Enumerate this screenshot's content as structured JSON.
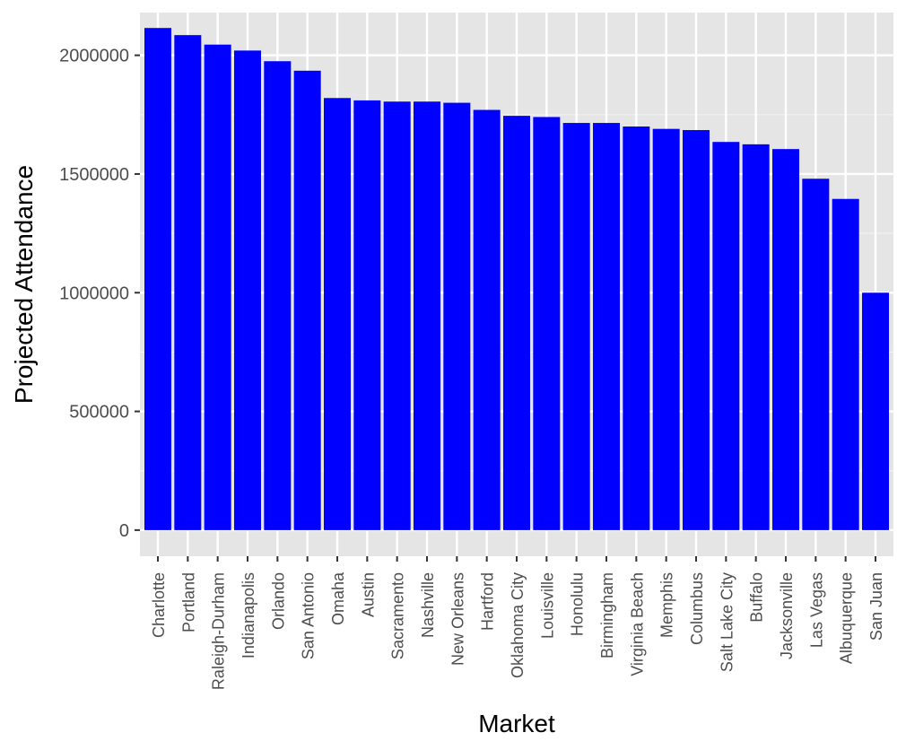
{
  "chart_data": {
    "type": "bar",
    "title": "",
    "xlabel": "Market",
    "ylabel": "Projected Attendance",
    "ylim": [
      -110000,
      2180000
    ],
    "yticks": [
      0,
      500000,
      1000000,
      1500000,
      2000000
    ],
    "ytick_labels": [
      "0",
      "500000",
      "1000000",
      "1500000",
      "2000000"
    ],
    "grid": true,
    "legend": "none",
    "colors": {
      "bar": "#0000ff",
      "panel": "#e5e5e5",
      "grid": "#ffffff"
    },
    "categories": [
      "Charlotte",
      "Portland",
      "Raleigh-Durham",
      "Indianapolis",
      "Orlando",
      "San Antonio",
      "Omaha",
      "Austin",
      "Sacramento",
      "Nashville",
      "New Orleans",
      "Hartford",
      "Oklahoma City",
      "Louisville",
      "Honolulu",
      "Birmingham",
      "Virginia Beach",
      "Memphis",
      "Columbus",
      "Salt Lake City",
      "Buffalo",
      "Jacksonville",
      "Las Vegas",
      "Albuquerque",
      "San Juan"
    ],
    "values": [
      2115000,
      2085000,
      2045000,
      2020000,
      1975000,
      1935000,
      1820000,
      1810000,
      1805000,
      1805000,
      1800000,
      1770000,
      1745000,
      1740000,
      1715000,
      1715000,
      1700000,
      1690000,
      1685000,
      1635000,
      1625000,
      1605000,
      1480000,
      1395000,
      1000000
    ]
  }
}
